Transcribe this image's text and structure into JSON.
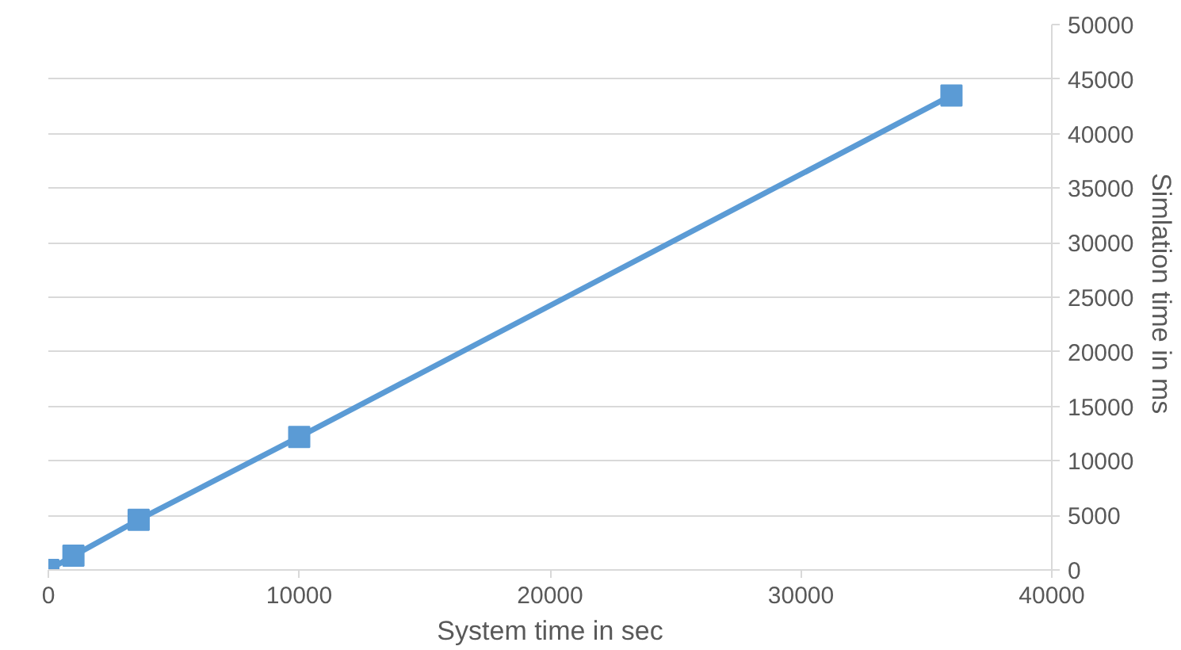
{
  "chart_data": {
    "type": "line",
    "xlabel": "System time in sec",
    "ylabel": "Simlation time  in ms",
    "x": [
      0,
      1000,
      3600,
      10000,
      36000
    ],
    "series": [
      {
        "color": "#5b9bd5",
        "values": [
          0,
          1300,
          4600,
          12200,
          43500
        ]
      }
    ],
    "line_style": "solid",
    "marker": "square",
    "xlim": [
      0,
      40000
    ],
    "xticks": [
      0,
      10000,
      20000,
      30000,
      40000
    ],
    "ylim": [
      0,
      50000
    ],
    "yticks": [
      0,
      5000,
      10000,
      15000,
      20000,
      25000,
      30000,
      35000,
      40000,
      45000,
      50000
    ],
    "grid": "y"
  }
}
